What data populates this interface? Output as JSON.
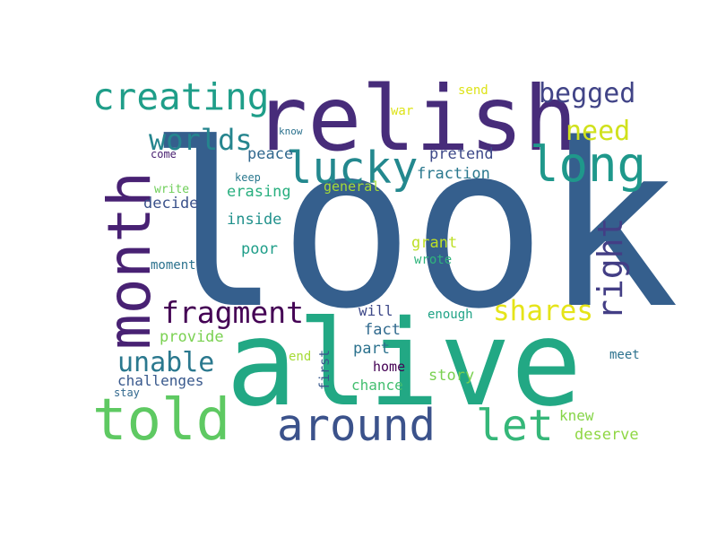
{
  "words": [
    {
      "text": "look",
      "color": "#355f8d"
    },
    {
      "text": "alive",
      "color": "#22a884"
    },
    {
      "text": "relish",
      "color": "#472c7a"
    },
    {
      "text": "month",
      "color": "#482173"
    },
    {
      "text": "told",
      "color": "#5ec962"
    },
    {
      "text": "around",
      "color": "#3b528b"
    },
    {
      "text": "long",
      "color": "#1f988b"
    },
    {
      "text": "lucky",
      "color": "#23888e"
    },
    {
      "text": "let",
      "color": "#35b779"
    },
    {
      "text": "creating",
      "color": "#1f9e89"
    },
    {
      "text": "right",
      "color": "#433e85"
    },
    {
      "text": "fragment",
      "color": "#440154"
    },
    {
      "text": "begged",
      "color": "#414487"
    },
    {
      "text": "shares",
      "color": "#e5e419"
    },
    {
      "text": "worlds",
      "color": "#25858e"
    },
    {
      "text": "unable",
      "color": "#2a788e"
    },
    {
      "text": "need",
      "color": "#d0e11c"
    },
    {
      "text": "send",
      "color": "#dde318"
    },
    {
      "text": "war",
      "color": "#dde318"
    },
    {
      "text": "know",
      "color": "#2c728e"
    },
    {
      "text": "come",
      "color": "#481f70"
    },
    {
      "text": "peace",
      "color": "#31688e"
    },
    {
      "text": "pretend",
      "color": "#3e4989"
    },
    {
      "text": "fraction",
      "color": "#2a788e"
    },
    {
      "text": "keep",
      "color": "#2a788e"
    },
    {
      "text": "write",
      "color": "#6ece58"
    },
    {
      "text": "erasing",
      "color": "#29af7f"
    },
    {
      "text": "general",
      "color": "#a5db36"
    },
    {
      "text": "decide",
      "color": "#3b528b"
    },
    {
      "text": "inside",
      "color": "#21918c"
    },
    {
      "text": "grant",
      "color": "#bddf26"
    },
    {
      "text": "poor",
      "color": "#1f9e89"
    },
    {
      "text": "wrote",
      "color": "#2fb47c"
    },
    {
      "text": "moment",
      "color": "#2c728e"
    },
    {
      "text": "will",
      "color": "#3e4989"
    },
    {
      "text": "enough",
      "color": "#20a386"
    },
    {
      "text": "provide",
      "color": "#7ad151"
    },
    {
      "text": "fact",
      "color": "#306a8e"
    },
    {
      "text": "part",
      "color": "#2c728e"
    },
    {
      "text": "end",
      "color": "#a5db36"
    },
    {
      "text": "first",
      "color": "#38588c"
    },
    {
      "text": "meet",
      "color": "#2c728e"
    },
    {
      "text": "challenges",
      "color": "#38588c"
    },
    {
      "text": "home",
      "color": "#440154"
    },
    {
      "text": "story",
      "color": "#7ad151"
    },
    {
      "text": "stay",
      "color": "#31688e"
    },
    {
      "text": "chance",
      "color": "#44bf70"
    },
    {
      "text": "knew",
      "color": "#86d549"
    },
    {
      "text": "deserve",
      "color": "#8fd744"
    }
  ]
}
